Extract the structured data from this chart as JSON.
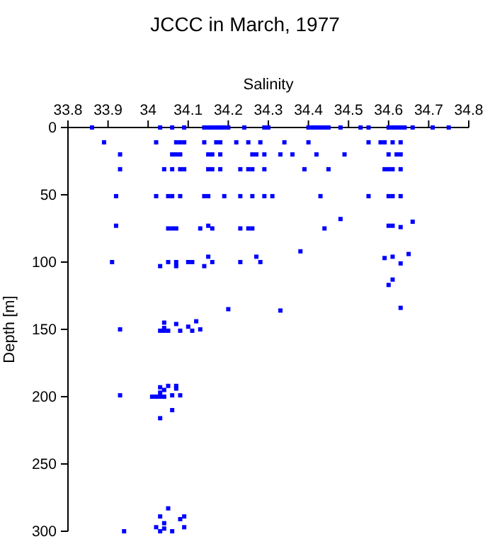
{
  "chart_data": {
    "type": "scatter",
    "title": "JCCC in March, 1977",
    "xlabel": "Salinity",
    "ylabel": "Depth [m]",
    "xlim": [
      33.8,
      34.8
    ],
    "xticks": [
      33.8,
      33.9,
      34,
      34.1,
      34.2,
      34.3,
      34.4,
      34.5,
      34.6,
      34.7,
      34.8
    ],
    "ylim": [
      300,
      0
    ],
    "yticks": [
      0,
      50,
      100,
      150,
      200,
      250,
      300
    ],
    "marker": "square",
    "series": [
      {
        "color": "#0000ff",
        "x": [
          33.86,
          34.03,
          34.06,
          34.09,
          34.14,
          34.15,
          34.16,
          34.17,
          34.18,
          34.19,
          34.2,
          34.24,
          34.29,
          34.3,
          34.4,
          34.41,
          34.42,
          34.43,
          34.44,
          34.45,
          34.48,
          34.53,
          34.55,
          34.6,
          34.61,
          34.62,
          34.63,
          34.64,
          34.66,
          34.71,
          34.75,
          33.89,
          34.02,
          34.07,
          34.08,
          34.09,
          34.14,
          34.17,
          34.18,
          34.22,
          34.25,
          34.28,
          34.34,
          34.4,
          34.55,
          34.58,
          34.59,
          34.61,
          34.63,
          33.93,
          34.06,
          34.07,
          34.08,
          34.15,
          34.16,
          34.18,
          34.26,
          34.27,
          34.29,
          34.33,
          34.36,
          34.42,
          34.49,
          34.6,
          34.62,
          34.63,
          33.93,
          34.04,
          34.06,
          34.08,
          34.09,
          34.15,
          34.16,
          34.18,
          34.23,
          34.25,
          34.26,
          34.29,
          34.39,
          34.45,
          34.59,
          34.6,
          34.61,
          34.63,
          33.92,
          34.02,
          34.05,
          34.06,
          34.08,
          34.14,
          34.15,
          34.19,
          34.23,
          34.26,
          34.29,
          34.31,
          34.43,
          34.55,
          34.6,
          34.61,
          34.63,
          34.48,
          34.66,
          33.92,
          34.15,
          34.6,
          34.61,
          34.63,
          34.05,
          34.06,
          34.07,
          34.13,
          34.16,
          34.23,
          34.25,
          34.26,
          34.44,
          34.38,
          34.65,
          34.15,
          34.27,
          34.59,
          34.61,
          33.91,
          34.05,
          34.07,
          34.1,
          34.11,
          34.16,
          34.23,
          34.28,
          34.63,
          34.03,
          34.07,
          34.14,
          34.61,
          34.6,
          34.2,
          34.33,
          34.63,
          34.12,
          34.04,
          34.07,
          34.1,
          34.04,
          33.93,
          34.03,
          34.04,
          34.05,
          34.08,
          34.11,
          34.13,
          34.05,
          34.07,
          34.03,
          34.04,
          34.07,
          34.03,
          33.93,
          34.06,
          34.08,
          34.01,
          34.02,
          34.03,
          34.04,
          34.06,
          34.03,
          34.05,
          34.03,
          34.09,
          34.08,
          34.04,
          34.02,
          34.09,
          34.04,
          33.94,
          34.06,
          34.03
        ],
        "values": [
          0,
          0,
          0,
          0,
          0,
          0,
          0,
          0,
          0,
          0,
          0,
          0,
          0,
          0,
          0,
          0,
          0,
          0,
          0,
          0,
          0,
          0,
          0,
          0,
          0,
          0,
          0,
          0,
          0,
          0,
          0,
          11,
          11,
          11,
          11,
          11,
          11,
          11,
          11,
          11,
          11,
          11,
          11,
          11,
          11,
          11,
          11,
          11,
          11,
          20,
          20,
          20,
          20,
          20,
          20,
          20,
          20,
          20,
          20,
          20,
          20,
          20,
          20,
          20,
          20,
          20,
          31,
          31,
          31,
          31,
          31,
          31,
          31,
          31,
          31,
          31,
          31,
          31,
          31,
          31,
          31,
          31,
          31,
          31,
          51,
          51,
          51,
          51,
          51,
          51,
          51,
          51,
          51,
          51,
          51,
          51,
          51,
          51,
          51,
          51,
          51,
          68,
          70,
          73,
          73,
          73,
          73,
          74,
          75,
          75,
          75,
          75,
          75,
          75,
          75,
          75,
          75,
          92,
          94,
          96,
          96,
          97,
          96,
          100,
          100,
          100,
          100,
          100,
          100,
          100,
          100,
          101,
          103,
          103,
          103,
          113,
          117,
          135,
          136,
          134,
          144,
          145,
          146,
          148,
          149,
          150,
          151,
          151,
          151,
          151,
          151,
          150,
          192,
          192,
          193,
          195,
          194,
          197,
          199,
          199,
          199,
          200,
          200,
          200,
          200,
          210,
          216,
          283,
          289,
          289,
          291,
          294,
          297,
          297,
          298,
          300,
          300,
          300
        ]
      }
    ]
  }
}
